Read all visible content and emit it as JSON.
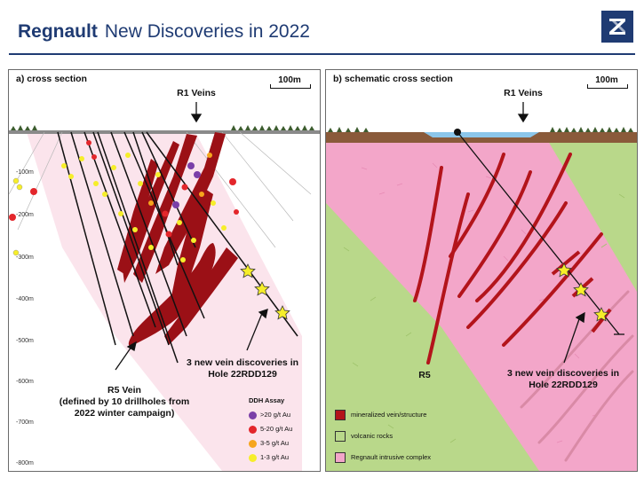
{
  "header": {
    "company": "Regnault",
    "subtitle": "New Discoveries in 2022"
  },
  "panel_a": {
    "title": "a) cross section",
    "scale_label": "100m",
    "veins_label": "R1 Veins",
    "discovery_label_line1": "3 new vein discoveries in",
    "discovery_label_line2": "Hole 22RDD129",
    "r5_line1": "R5 Vein",
    "r5_line2": "(defined by 10 drillholes from",
    "r5_line3": "2022 winter campaign)",
    "depth_ticks": [
      "-100m",
      "-200m",
      "-300m",
      "-400m",
      "-500m",
      "-600m",
      "-700m",
      "-800m"
    ],
    "legend": {
      "title": "DDH Assay",
      "items": [
        {
          "label": ">20 g/t Au",
          "color": "#7a3fa8"
        },
        {
          "label": "5-20 g/t Au",
          "color": "#e3262b"
        },
        {
          "label": "3-5 g/t Au",
          "color": "#f6a51d"
        },
        {
          "label": "1-3 g/t Au",
          "color": "#f6ee2a"
        }
      ]
    }
  },
  "panel_b": {
    "title": "b) schematic cross section",
    "scale_label": "100m",
    "veins_label": "R1 Veins",
    "discovery_label_line1": "3 new vein discoveries in",
    "discovery_label_line2": "Hole 22RDD129",
    "r5_label": "R5",
    "legend": [
      {
        "label": "mineralized vein/structure",
        "color": "#b3141b"
      },
      {
        "label": "volcanic rocks",
        "color": "#b9d88a"
      },
      {
        "label": "Regnault intrusive complex",
        "color": "#f3a6c9"
      }
    ]
  },
  "colors": {
    "brand": "#1f3b73",
    "vein": "#9b1016",
    "intrusive_light": "#fbe4ec",
    "intrusive": "#f3a6c9",
    "volcanic": "#b9d88a"
  }
}
